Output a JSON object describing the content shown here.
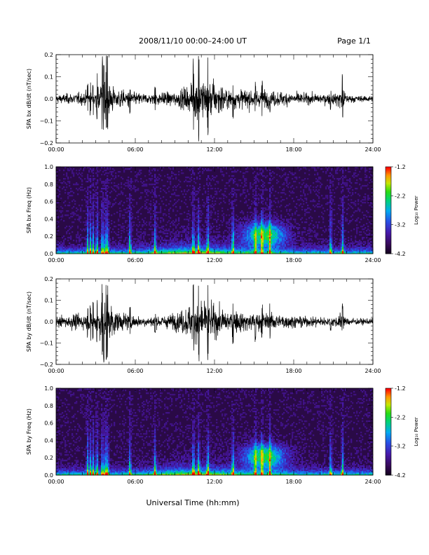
{
  "header": {
    "title": "2008/11/10   00:00–24:00 UT",
    "page": "Page 1/1"
  },
  "xlabel": "Universal Time (hh:mm)",
  "chart_data": [
    {
      "type": "line",
      "ylabel": "SPA bx dB/dt (nT/sec)",
      "xlim": [
        0,
        24
      ],
      "ylim": [
        -0.2,
        0.2
      ],
      "xticks": [
        "00:00",
        "06:00",
        "12:00",
        "18:00",
        "24:00"
      ],
      "yticks": [
        "−0.2",
        "−0.1",
        "0.0",
        "0.1",
        "0.2"
      ],
      "envelope": {
        "hours": [
          0,
          1,
          2,
          3,
          3.5,
          3.9,
          4.5,
          5,
          6,
          7,
          8,
          9,
          10,
          10.5,
          11,
          11.5,
          12,
          13,
          14,
          15,
          16,
          17,
          18,
          19,
          20,
          21,
          21.7,
          22,
          23,
          24
        ],
        "amplitude": [
          0.04,
          0.05,
          0.06,
          0.09,
          0.2,
          0.2,
          0.1,
          0.08,
          0.06,
          0.05,
          0.06,
          0.07,
          0.12,
          0.2,
          0.2,
          0.2,
          0.15,
          0.1,
          0.09,
          0.09,
          0.08,
          0.07,
          0.06,
          0.05,
          0.05,
          0.05,
          0.12,
          0.04,
          0.03,
          0.03
        ]
      }
    },
    {
      "type": "heatmap",
      "ylabel": "SPA bx Freq (Hz)",
      "xlim": [
        0,
        24
      ],
      "ylim": [
        0.0,
        1.0
      ],
      "xticks": [
        "00:00",
        "06:00",
        "12:00",
        "18:00",
        "24:00"
      ],
      "yticks": [
        "0.0",
        "0.2",
        "0.4",
        "0.6",
        "0.8",
        "1.0"
      ],
      "colorbar": {
        "label": "Log₁₀ Power",
        "range": [
          -4.2,
          -1.2
        ],
        "ticks": [
          "-1.2",
          "-2.2",
          "-3.2",
          "-4.2"
        ]
      }
    },
    {
      "type": "line",
      "ylabel": "SPA by dB/dt (nT/sec)",
      "xlim": [
        0,
        24
      ],
      "ylim": [
        -0.2,
        0.2
      ],
      "xticks": [
        "00:00",
        "06:00",
        "12:00",
        "18:00",
        "24:00"
      ],
      "yticks": [
        "−0.2",
        "−0.1",
        "0.0",
        "0.1",
        "0.2"
      ],
      "envelope": {
        "hours": [
          0,
          1,
          2,
          3,
          3.5,
          3.9,
          4.5,
          5,
          6,
          7,
          8,
          9,
          10,
          10.5,
          11,
          11.5,
          12,
          13,
          14,
          15,
          16,
          17,
          18,
          19,
          20,
          21,
          21.7,
          22,
          23,
          24
        ],
        "amplitude": [
          0.05,
          0.07,
          0.08,
          0.1,
          0.2,
          0.2,
          0.12,
          0.09,
          0.06,
          0.05,
          0.06,
          0.08,
          0.15,
          0.2,
          0.2,
          0.2,
          0.15,
          0.11,
          0.1,
          0.1,
          0.09,
          0.08,
          0.06,
          0.05,
          0.05,
          0.04,
          0.1,
          0.04,
          0.03,
          0.03
        ]
      }
    },
    {
      "type": "heatmap",
      "ylabel": "SPA by Freq (Hz)",
      "xlim": [
        0,
        24
      ],
      "ylim": [
        0.0,
        1.0
      ],
      "xticks": [
        "00:00",
        "06:00",
        "12:00",
        "18:00",
        "24:00"
      ],
      "yticks": [
        "0.0",
        "0.2",
        "0.4",
        "0.6",
        "0.8",
        "1.0"
      ],
      "colorbar": {
        "label": "Log₁₀ Power",
        "range": [
          -4.2,
          -1.2
        ],
        "ticks": [
          "-1.2",
          "-2.2",
          "-3.2",
          "-4.2"
        ]
      }
    }
  ],
  "activity_hours": [
    2.4,
    2.6,
    2.8,
    3.1,
    3.5,
    3.6,
    3.8,
    3.9,
    5.6,
    7.5,
    10.4,
    10.8,
    11.5,
    13.4,
    15.1,
    15.6,
    16.2,
    20.8,
    21.7
  ],
  "colors": {
    "trace": "#000000",
    "heatmap_background": "#2a0a46"
  }
}
